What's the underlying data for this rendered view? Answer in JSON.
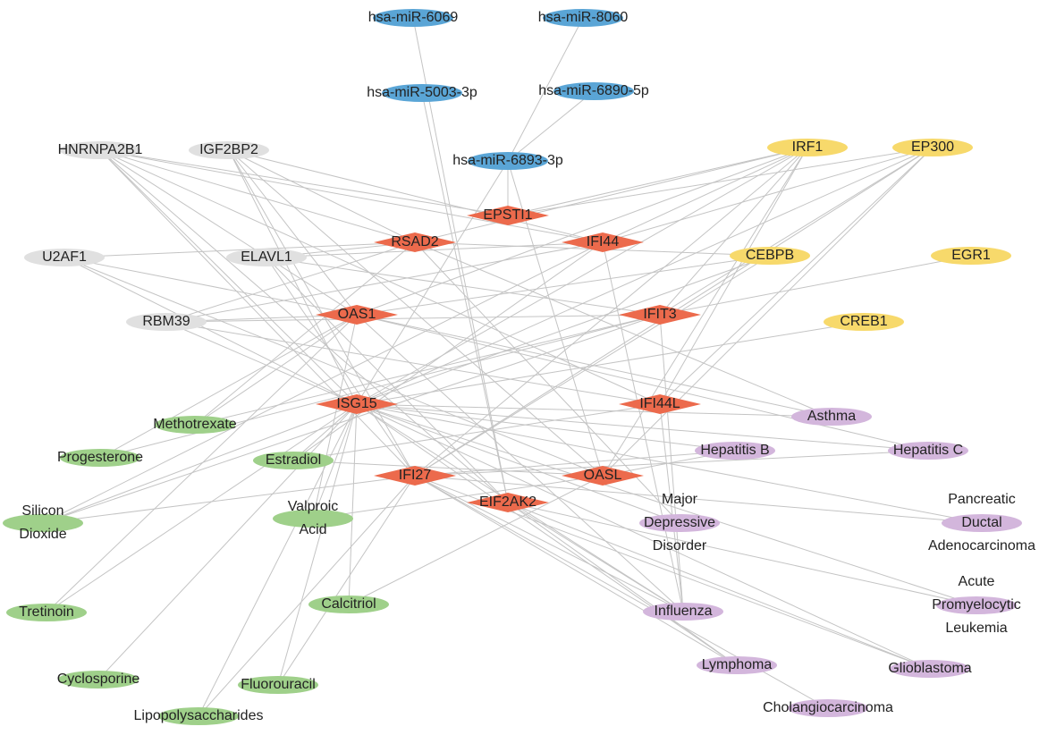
{
  "nodes": [
    {
      "label": [
        "hsa-miR-6069"
      ],
      "group": "mirna"
    },
    {
      "label": [
        "hsa-miR-8060"
      ],
      "group": "mirna"
    },
    {
      "label": [
        "hsa-miR-5003-3p"
      ],
      "group": "mirna"
    },
    {
      "label": [
        "hsa-miR-6890-5p"
      ],
      "group": "mirna"
    },
    {
      "label": [
        "hsa-miR-6893-3p"
      ],
      "group": "mirna"
    },
    {
      "label": [
        "HNRNPA2B1"
      ],
      "group": "rbp"
    },
    {
      "label": [
        "IGF2BP2"
      ],
      "group": "rbp"
    },
    {
      "label": [
        "U2AF1"
      ],
      "group": "rbp"
    },
    {
      "label": [
        "ELAVL1"
      ],
      "group": "rbp"
    },
    {
      "label": [
        "RBM39"
      ],
      "group": "rbp"
    },
    {
      "label": [
        "IRF1"
      ],
      "group": "tf"
    },
    {
      "label": [
        "EP300"
      ],
      "group": "tf"
    },
    {
      "label": [
        "CEBPB"
      ],
      "group": "tf"
    },
    {
      "label": [
        "EGR1"
      ],
      "group": "tf"
    },
    {
      "label": [
        "CREB1"
      ],
      "group": "tf"
    },
    {
      "label": [
        "EPSTI1"
      ],
      "group": "hub"
    },
    {
      "label": [
        "RSAD2"
      ],
      "group": "hub"
    },
    {
      "label": [
        "IFI44"
      ],
      "group": "hub"
    },
    {
      "label": [
        "OAS1"
      ],
      "group": "hub"
    },
    {
      "label": [
        "IFIT3"
      ],
      "group": "hub"
    },
    {
      "label": [
        "ISG15"
      ],
      "group": "hub"
    },
    {
      "label": [
        "IFI44L"
      ],
      "group": "hub"
    },
    {
      "label": [
        "IFI27"
      ],
      "group": "hub"
    },
    {
      "label": [
        "OASL"
      ],
      "group": "hub"
    },
    {
      "label": [
        "EIF2AK2"
      ],
      "group": "hub"
    },
    {
      "label": [
        "Methotrexate"
      ],
      "group": "drug"
    },
    {
      "label": [
        "Progesterone"
      ],
      "group": "drug"
    },
    {
      "label": [
        "Estradiol"
      ],
      "group": "drug"
    },
    {
      "label": [
        "Silicon",
        "Dioxide"
      ],
      "group": "drug"
    },
    {
      "label": [
        "Valproic",
        "Acid"
      ],
      "group": "drug"
    },
    {
      "label": [
        "Tretinoin"
      ],
      "group": "drug"
    },
    {
      "label": [
        "Calcitriol"
      ],
      "group": "drug"
    },
    {
      "label": [
        "Cyclosporine"
      ],
      "group": "drug"
    },
    {
      "label": [
        "Fluorouracil"
      ],
      "group": "drug"
    },
    {
      "label": [
        "Lipopolysaccharides"
      ],
      "group": "drug"
    },
    {
      "label": [
        "Asthma"
      ],
      "group": "disease"
    },
    {
      "label": [
        "Hepatitis B"
      ],
      "group": "disease"
    },
    {
      "label": [
        "Hepatitis C"
      ],
      "group": "disease"
    },
    {
      "label": [
        "Major",
        "Depressive",
        "Disorder"
      ],
      "group": "disease"
    },
    {
      "label": [
        "Pancreatic",
        "Ductal",
        "Adenocarcinoma"
      ],
      "group": "disease"
    },
    {
      "label": [
        "Acute",
        "Promyelocytic",
        "Leukemia"
      ],
      "group": "disease"
    },
    {
      "label": [
        "Influenza"
      ],
      "group": "disease"
    },
    {
      "label": [
        "Lymphoma"
      ],
      "group": "disease"
    },
    {
      "label": [
        "Glioblastoma"
      ],
      "group": "disease"
    },
    {
      "label": [
        "Cholangiocarcinoma"
      ],
      "group": "disease"
    }
  ]
}
